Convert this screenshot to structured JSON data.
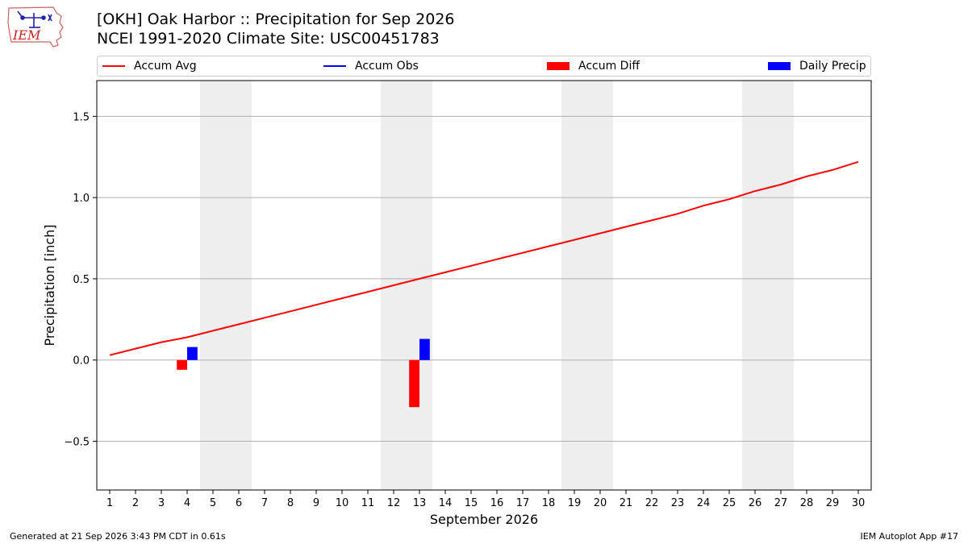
{
  "header": {
    "logo_text": "IEM",
    "title_line1": "[OKH] Oak Harbor :: Precipitation for Sep 2026",
    "title_line2": "NCEI 1991-2020 Climate Site: USC00451783"
  },
  "legend": {
    "placement": "top",
    "items": [
      {
        "label": "Accum Avg",
        "kind": "line",
        "color": "#ff0000"
      },
      {
        "label": "Accum Obs",
        "kind": "line",
        "color": "#0000ff"
      },
      {
        "label": "Accum Diff",
        "kind": "bar",
        "color": "#ff0000"
      },
      {
        "label": "Daily Precip",
        "kind": "bar",
        "color": "#0000ff"
      }
    ]
  },
  "footer": {
    "generated": "Generated at 21 Sep 2026 3:43 PM CDT in 0.61s",
    "app": "IEM Autoplot App #17"
  },
  "chart_data": {
    "type": "line",
    "xlabel": "September 2026",
    "ylabel": "Precipitation [inch]",
    "xlim": [
      0.5,
      30.5
    ],
    "ylim": [
      -0.8,
      1.72
    ],
    "x_ticks": [
      1,
      2,
      3,
      4,
      5,
      6,
      7,
      8,
      9,
      10,
      11,
      12,
      13,
      14,
      15,
      16,
      17,
      18,
      19,
      20,
      21,
      22,
      23,
      24,
      25,
      26,
      27,
      28,
      29,
      30
    ],
    "y_ticks": [
      -0.5,
      0.0,
      0.5,
      1.0,
      1.5
    ],
    "y_tick_labels": [
      "−0.5",
      "0.0",
      "0.5",
      "1.0",
      "1.5"
    ],
    "grid": "horizontal",
    "weekend_shading": [
      [
        4.5,
        6.5
      ],
      [
        11.5,
        13.5
      ],
      [
        18.5,
        20.5
      ],
      [
        25.5,
        27.5
      ]
    ],
    "shade_color": "#eeeeee",
    "series": [
      {
        "name": "Accum Avg",
        "type": "line",
        "color": "#ff0000",
        "x": [
          1,
          2,
          3,
          4,
          5,
          6,
          7,
          8,
          9,
          10,
          11,
          12,
          13,
          14,
          15,
          16,
          17,
          18,
          19,
          20,
          21,
          22,
          23,
          24,
          25,
          26,
          27,
          28,
          29,
          30
        ],
        "values": [
          0.03,
          0.07,
          0.11,
          0.14,
          0.18,
          0.22,
          0.26,
          0.3,
          0.34,
          0.38,
          0.42,
          0.46,
          0.5,
          0.54,
          0.58,
          0.62,
          0.66,
          0.7,
          0.74,
          0.78,
          0.82,
          0.86,
          0.9,
          0.95,
          0.99,
          1.04,
          1.08,
          1.13,
          1.17,
          1.22
        ]
      },
      {
        "name": "Accum Diff",
        "type": "bar",
        "color": "#ff0000",
        "x": [
          4,
          13
        ],
        "values": [
          -0.06,
          -0.29
        ]
      },
      {
        "name": "Daily Precip",
        "type": "bar",
        "color": "#0000ff",
        "x": [
          4,
          13
        ],
        "values": [
          0.08,
          0.13
        ]
      }
    ]
  }
}
